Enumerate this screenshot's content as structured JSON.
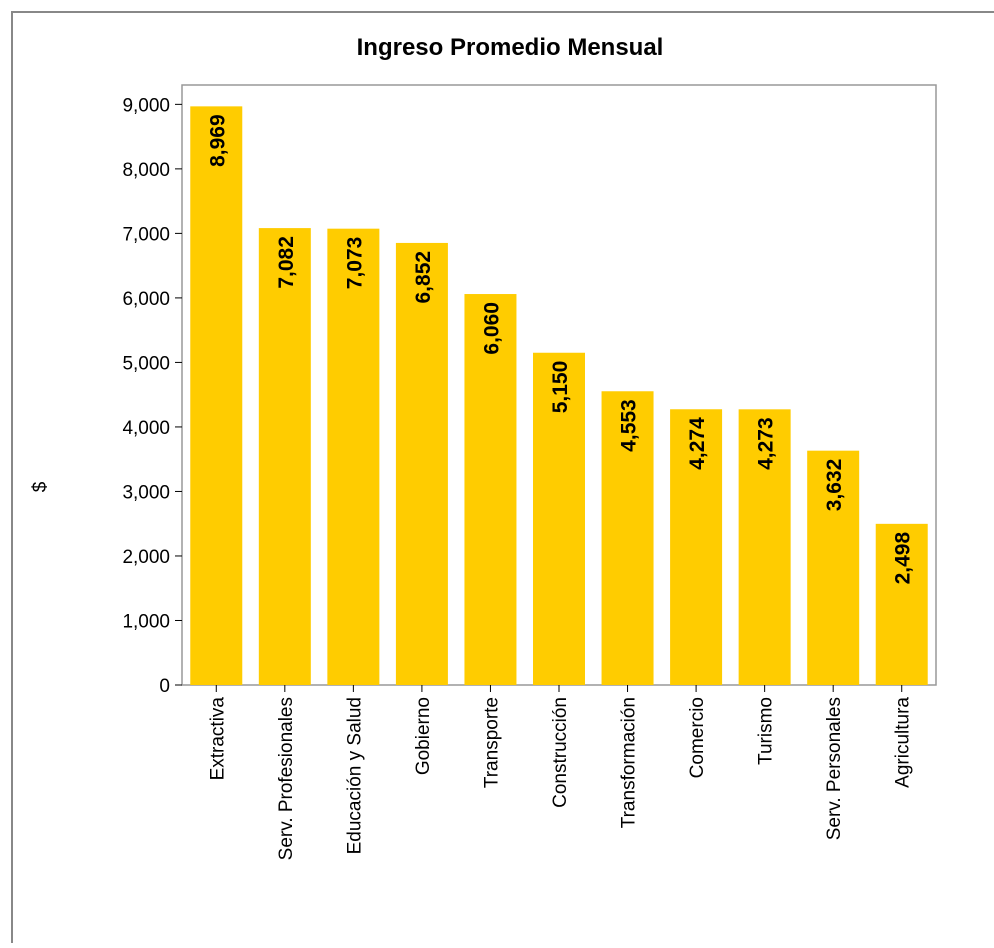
{
  "chart_data": {
    "type": "bar",
    "title": "Ingreso Promedio Mensual",
    "ylabel": "$",
    "categories": [
      "Extractiva",
      "Serv. Profesionales",
      "Educación y Salud",
      "Gobierno",
      "Transporte",
      "Construcción",
      "Transformación",
      "Comercio",
      "Turismo",
      "Serv. Personales",
      "Agricultura"
    ],
    "values": [
      8969,
      7082,
      7073,
      6852,
      6060,
      5150,
      4553,
      4274,
      4273,
      3632,
      2498
    ],
    "value_labels": [
      "8,969",
      "7,082",
      "7,073",
      "6,852",
      "6,060",
      "5,150",
      "4,553",
      "4,274",
      "4,273",
      "3,632",
      "2,498"
    ],
    "color": "#ffcc00",
    "ylim": [
      0,
      9300
    ],
    "yticks": [
      0,
      {
        "value": 1000,
        "label": "1,000"
      },
      {
        "value": 2000,
        "label": "2,000"
      },
      {
        "value": 3000,
        "label": "3,000"
      },
      {
        "value": 4000,
        "label": "4,000"
      },
      {
        "value": 5000,
        "label": "5,000"
      },
      {
        "value": 6000,
        "label": "6,000"
      },
      {
        "value": 7000,
        "label": "7,000"
      },
      {
        "value": 8000,
        "label": "8,000"
      },
      {
        "value": 9000,
        "label": "9,000"
      }
    ],
    "grid": false
  }
}
